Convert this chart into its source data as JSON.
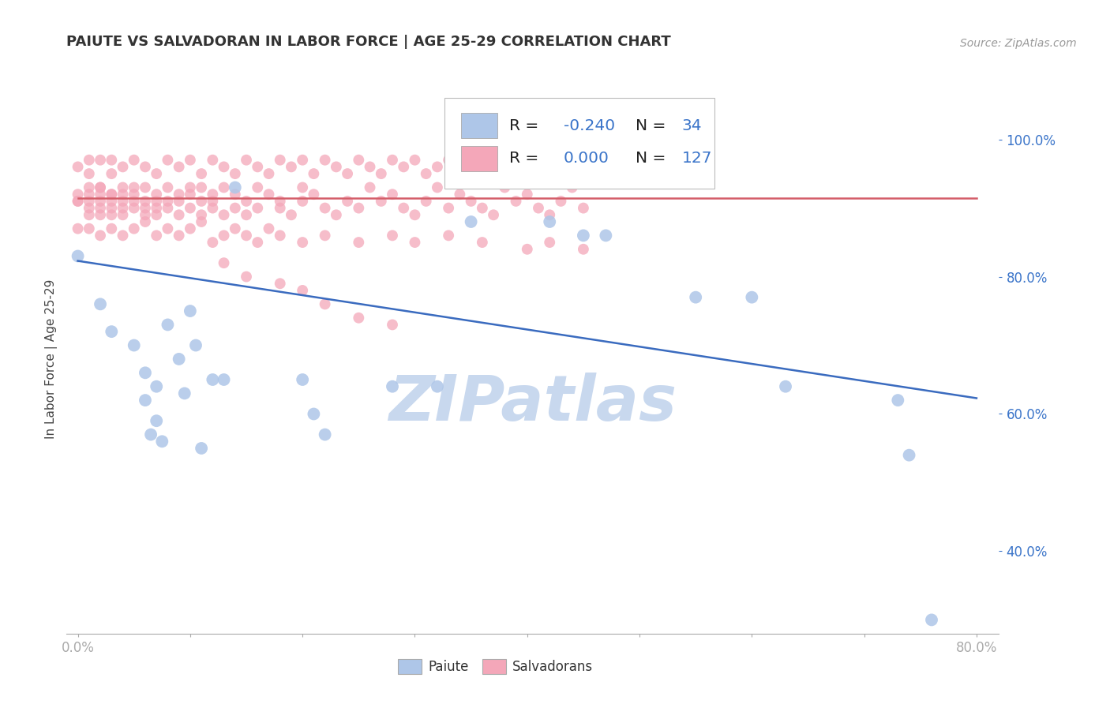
{
  "title": "PAIUTE VS SALVADORAN IN LABOR FORCE | AGE 25-29 CORRELATION CHART",
  "source": "Source: ZipAtlas.com",
  "ylabel_left": "In Labor Force | Age 25-29",
  "xlim": [
    -0.01,
    0.82
  ],
  "ylim": [
    0.28,
    1.08
  ],
  "xtick_positions": [
    0.0,
    0.1,
    0.2,
    0.3,
    0.4,
    0.5,
    0.6,
    0.7,
    0.8
  ],
  "xtick_labels": [
    "0.0%",
    "",
    "",
    "",
    "",
    "",
    "",
    "",
    "80.0%"
  ],
  "ytick_positions": [
    0.4,
    0.6,
    0.8,
    1.0
  ],
  "ytick_labels": [
    "40.0%",
    "60.0%",
    "80.0%",
    "100.0%"
  ],
  "paiute_color": "#aec6e8",
  "salvadoran_color": "#f4a7b9",
  "paiute_trend_color": "#3a6bbf",
  "salvadoran_trend_color": "#d45f6a",
  "legend_r1": "R = ",
  "legend_r1_val": "-0.240",
  "legend_n1": "N = ",
  "legend_n1_val": "34",
  "legend_r2": "R =  ",
  "legend_r2_val": "0.000",
  "legend_n2": "N = ",
  "legend_n2_val": "127",
  "watermark_text": "ZIPatlas",
  "watermark_color": "#c8d8ee",
  "background_color": "#ffffff",
  "grid_color": "#cccccc",
  "paiute_x": [
    0.0,
    0.02,
    0.03,
    0.05,
    0.06,
    0.06,
    0.065,
    0.07,
    0.07,
    0.075,
    0.08,
    0.09,
    0.095,
    0.1,
    0.105,
    0.11,
    0.12,
    0.13,
    0.14,
    0.2,
    0.21,
    0.22,
    0.28,
    0.32,
    0.35,
    0.42,
    0.45,
    0.47,
    0.55,
    0.6,
    0.63,
    0.73,
    0.74,
    0.76
  ],
  "paiute_y": [
    0.83,
    0.76,
    0.72,
    0.7,
    0.66,
    0.62,
    0.57,
    0.64,
    0.59,
    0.56,
    0.73,
    0.68,
    0.63,
    0.75,
    0.7,
    0.55,
    0.65,
    0.65,
    0.93,
    0.65,
    0.6,
    0.57,
    0.64,
    0.64,
    0.88,
    0.88,
    0.86,
    0.86,
    0.77,
    0.77,
    0.64,
    0.62,
    0.54,
    0.3
  ],
  "paiute_trend_x": [
    0.0,
    0.8
  ],
  "paiute_trend_y": [
    0.823,
    0.623
  ],
  "salvadoran_trend_x": [
    0.0,
    0.8
  ],
  "salvadoran_trend_y": [
    0.915,
    0.915
  ],
  "salv_x1": [
    0.0,
    0.0,
    0.0,
    0.01,
    0.01,
    0.01,
    0.01,
    0.01,
    0.02,
    0.02,
    0.02,
    0.02,
    0.02,
    0.02,
    0.03,
    0.03,
    0.03,
    0.03,
    0.03,
    0.04,
    0.04,
    0.04,
    0.04,
    0.04,
    0.05,
    0.05,
    0.05,
    0.05,
    0.06,
    0.06,
    0.06,
    0.06,
    0.07,
    0.07,
    0.07,
    0.07,
    0.08,
    0.08,
    0.08,
    0.09,
    0.09,
    0.09,
    0.1,
    0.1,
    0.1,
    0.11,
    0.11,
    0.11,
    0.12,
    0.12,
    0.12,
    0.13,
    0.13,
    0.14,
    0.14,
    0.15,
    0.15,
    0.16,
    0.16,
    0.17,
    0.18,
    0.18,
    0.19,
    0.2,
    0.2,
    0.21,
    0.22,
    0.23,
    0.24,
    0.25,
    0.26,
    0.27,
    0.28,
    0.29,
    0.3,
    0.31,
    0.32,
    0.33,
    0.34,
    0.35,
    0.36,
    0.37,
    0.38,
    0.39,
    0.4,
    0.41,
    0.42,
    0.43,
    0.44,
    0.45
  ],
  "salv_y1": [
    0.91,
    0.92,
    0.91,
    0.93,
    0.91,
    0.9,
    0.89,
    0.92,
    0.93,
    0.91,
    0.92,
    0.9,
    0.89,
    0.93,
    0.92,
    0.91,
    0.9,
    0.89,
    0.92,
    0.93,
    0.91,
    0.9,
    0.92,
    0.89,
    0.91,
    0.93,
    0.9,
    0.92,
    0.91,
    0.9,
    0.93,
    0.89,
    0.92,
    0.91,
    0.9,
    0.89,
    0.93,
    0.91,
    0.9,
    0.92,
    0.91,
    0.89,
    0.93,
    0.9,
    0.92,
    0.91,
    0.89,
    0.93,
    0.9,
    0.92,
    0.91,
    0.89,
    0.93,
    0.92,
    0.9,
    0.91,
    0.89,
    0.93,
    0.9,
    0.92,
    0.91,
    0.9,
    0.89,
    0.93,
    0.91,
    0.92,
    0.9,
    0.89,
    0.91,
    0.9,
    0.93,
    0.91,
    0.92,
    0.9,
    0.89,
    0.91,
    0.93,
    0.9,
    0.92,
    0.91,
    0.9,
    0.89,
    0.93,
    0.91,
    0.92,
    0.9,
    0.89,
    0.91,
    0.93,
    0.9
  ],
  "salv_x2": [
    0.0,
    0.01,
    0.01,
    0.02,
    0.03,
    0.03,
    0.04,
    0.05,
    0.06,
    0.07,
    0.08,
    0.09,
    0.1,
    0.11,
    0.12,
    0.13,
    0.14,
    0.15,
    0.16,
    0.17,
    0.18,
    0.19,
    0.2,
    0.21,
    0.22,
    0.23,
    0.24,
    0.25,
    0.26,
    0.27,
    0.28,
    0.29,
    0.3,
    0.31,
    0.32,
    0.33,
    0.34
  ],
  "salv_y2": [
    0.96,
    0.97,
    0.95,
    0.97,
    0.95,
    0.97,
    0.96,
    0.97,
    0.96,
    0.95,
    0.97,
    0.96,
    0.97,
    0.95,
    0.97,
    0.96,
    0.95,
    0.97,
    0.96,
    0.95,
    0.97,
    0.96,
    0.97,
    0.95,
    0.97,
    0.96,
    0.95,
    0.97,
    0.96,
    0.95,
    0.97,
    0.96,
    0.97,
    0.95,
    0.96,
    0.97,
    0.95
  ]
}
